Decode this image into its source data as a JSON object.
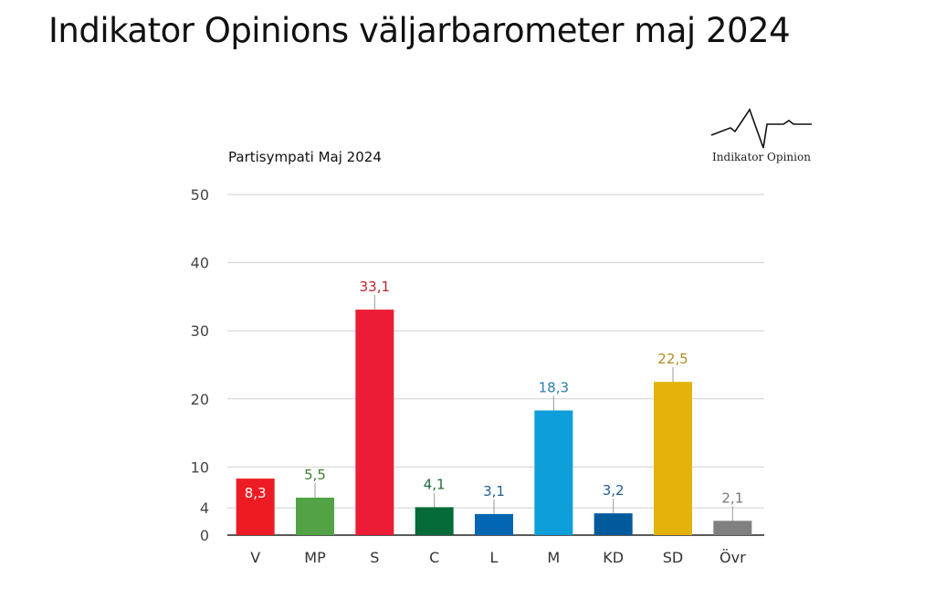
{
  "page": {
    "title": "Indikator Opinions väljarbarometer maj 2024"
  },
  "brand": {
    "logo_icon": "pulse-line-icon",
    "name": "Indikator Opinion"
  },
  "chart_data": {
    "type": "bar",
    "title": "Partisympati Maj 2024",
    "xlabel": "",
    "ylabel": "",
    "ylim": [
      0,
      50
    ],
    "yticks": [
      0,
      4,
      10,
      20,
      30,
      40,
      50
    ],
    "grid": true,
    "categories": [
      "V",
      "MP",
      "S",
      "C",
      "L",
      "M",
      "KD",
      "SD",
      "Övr"
    ],
    "values": [
      8.3,
      5.5,
      33.1,
      4.1,
      3.1,
      18.3,
      3.2,
      22.5,
      2.1
    ],
    "labels": [
      "8,3",
      "5,5",
      "33,1",
      "4,1",
      "3,1",
      "18,3",
      "3,2",
      "22,5",
      "2,1"
    ],
    "colors": [
      "#ed1c24",
      "#53a346",
      "#ed1c36",
      "#046a38",
      "#0066b3",
      "#0e9ed9",
      "#005a9c",
      "#e3b30c",
      "#808080"
    ],
    "label_colors": [
      "#ffffff",
      "#3d7f33",
      "#c0242f",
      "#1f6b3a",
      "#1f5e94",
      "#2a7fb0",
      "#1f5e94",
      "#b08c22",
      "#777777"
    ],
    "label_inside": [
      true,
      false,
      false,
      false,
      false,
      false,
      false,
      false,
      false
    ]
  }
}
